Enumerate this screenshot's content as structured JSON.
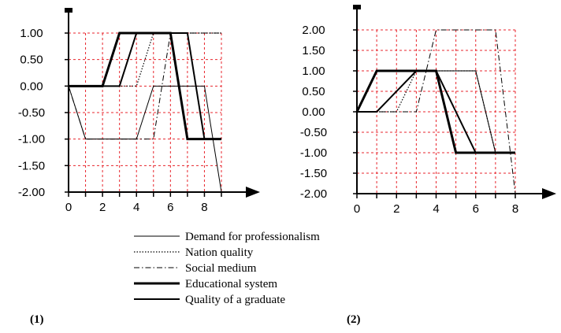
{
  "legend": [
    {
      "label": "Demand for professionalism",
      "style": "thin"
    },
    {
      "label": "Nation quality",
      "style": "dotted"
    },
    {
      "label": "Social medium",
      "style": "dashdot"
    },
    {
      "label": "Educational system",
      "style": "thick"
    },
    {
      "label": "Quality of a graduate",
      "style": "medium"
    }
  ],
  "chart_data": [
    {
      "type": "line",
      "panel_label": "(1)",
      "xlim": [
        0,
        9
      ],
      "ylim": [
        -2,
        1
      ],
      "xticks": [
        0,
        2,
        4,
        6,
        8
      ],
      "yticks": [
        1.0,
        0.5,
        0.0,
        -0.5,
        -1.0,
        -1.5,
        -2.0
      ],
      "ytick_labels": [
        "1.00",
        "0.50",
        "0.00",
        "-0.50",
        "-1.00",
        "-1.50",
        "-2.00"
      ],
      "grid": true,
      "grid_color": "#e8262d",
      "series": [
        {
          "name": "Demand for professionalism",
          "x": [
            0,
            1,
            2,
            3,
            4,
            5,
            6,
            7,
            8,
            9
          ],
          "y": [
            0,
            -1,
            -1,
            -1,
            -1,
            0,
            0,
            0,
            0,
            -2
          ]
        },
        {
          "name": "Nation quality",
          "x": [
            0,
            3,
            4,
            5,
            6,
            7,
            8,
            9
          ],
          "y": [
            0,
            0,
            0,
            1,
            1,
            1,
            1,
            1
          ]
        },
        {
          "name": "Social medium",
          "x": [
            0,
            1,
            2,
            3,
            4,
            5,
            6,
            7,
            8,
            9
          ],
          "y": [
            0,
            -1,
            -1,
            -1,
            -1,
            -1,
            1,
            1,
            1,
            1
          ]
        },
        {
          "name": "Educational system",
          "x": [
            0,
            2,
            3,
            6,
            7,
            9
          ],
          "y": [
            0,
            0,
            1,
            1,
            -1,
            -1
          ]
        },
        {
          "name": "Quality of a graduate",
          "x": [
            0,
            3,
            4,
            7,
            8,
            9
          ],
          "y": [
            0,
            0,
            1,
            1,
            -1,
            -1
          ]
        }
      ]
    },
    {
      "type": "line",
      "panel_label": "(2)",
      "xlim": [
        0,
        8
      ],
      "ylim": [
        -2,
        2
      ],
      "xticks": [
        0,
        2,
        4,
        6,
        8
      ],
      "yticks": [
        2.0,
        1.5,
        1.0,
        0.5,
        0.0,
        -0.5,
        -1.0,
        -1.5,
        -2.0
      ],
      "ytick_labels": [
        "2.00",
        "1.50",
        "1.00",
        "0.50",
        "0.00",
        "-0.50",
        "-1.00",
        "-1.50",
        "-2.00"
      ],
      "grid": true,
      "grid_color": "#e8262d",
      "series": [
        {
          "name": "Demand for professionalism",
          "x": [
            0,
            1,
            2,
            3,
            4,
            5,
            6,
            7,
            8
          ],
          "y": [
            0,
            1,
            1,
            1,
            1,
            1,
            1,
            -1,
            -1
          ]
        },
        {
          "name": "Nation quality",
          "x": [
            0,
            1,
            2,
            3,
            4,
            5,
            6,
            7,
            8
          ],
          "y": [
            0,
            0,
            0,
            1,
            1,
            1,
            1,
            -1,
            -1
          ]
        },
        {
          "name": "Social medium",
          "x": [
            0,
            2,
            3,
            4,
            5,
            6,
            7,
            8
          ],
          "y": [
            0,
            0,
            0,
            2,
            2,
            2,
            2,
            -2
          ]
        },
        {
          "name": "Educational system",
          "x": [
            0,
            1,
            4,
            5,
            8
          ],
          "y": [
            0,
            1,
            1,
            -1,
            -1
          ]
        },
        {
          "name": "Quality of a graduate",
          "x": [
            0,
            1,
            3,
            4,
            6,
            8
          ],
          "y": [
            0,
            0,
            1,
            1,
            -1,
            -1
          ]
        }
      ]
    }
  ]
}
